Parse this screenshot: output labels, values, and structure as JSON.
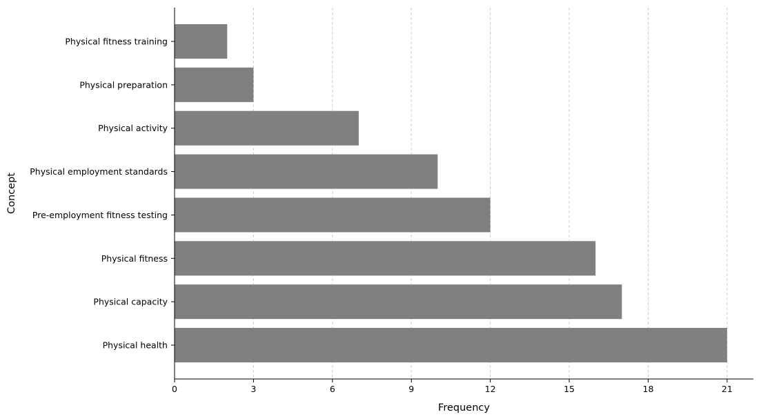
{
  "chart_data": {
    "type": "bar",
    "orientation": "horizontal",
    "categories": [
      "Physical fitness training",
      "Physical preparation",
      "Physical activity",
      "Physical employment standards",
      "Pre-employment fitness testing",
      "Physical fitness",
      "Physical capacity",
      "Physical health"
    ],
    "values": [
      2,
      3,
      7,
      10,
      12,
      16,
      17,
      21
    ],
    "xlabel": "Frequency",
    "ylabel": "Concept",
    "xlim": [
      0,
      22
    ],
    "xticks": [
      0,
      3,
      6,
      9,
      12,
      15,
      18,
      21
    ],
    "grid": "x-dashed",
    "bar_color": "#808080"
  }
}
